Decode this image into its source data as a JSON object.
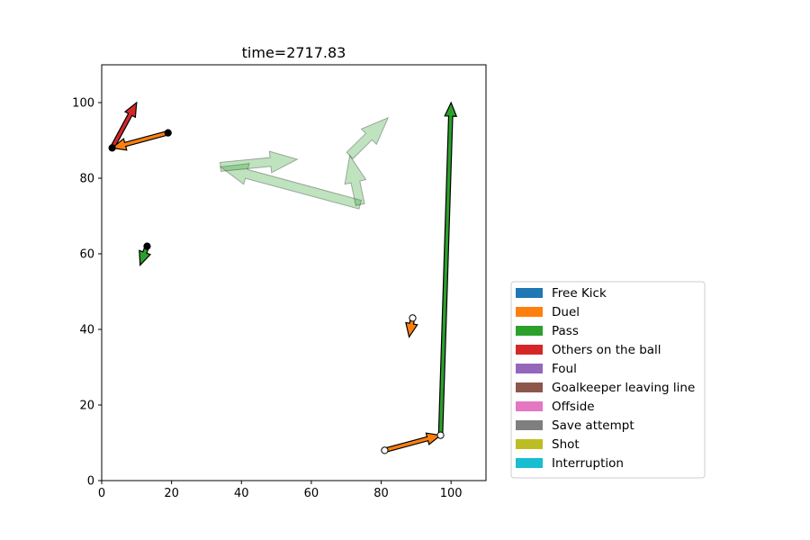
{
  "chart_data": {
    "type": "scatter",
    "title": "time=2717.83",
    "xlabel": "",
    "ylabel": "",
    "xlim": [
      0,
      110
    ],
    "ylim": [
      0,
      110
    ],
    "x_ticks": [
      0,
      20,
      40,
      60,
      80,
      100
    ],
    "y_ticks": [
      0,
      20,
      40,
      60,
      80,
      100
    ],
    "grid": false,
    "legend_position": "lower-right-outside",
    "legend": [
      {
        "label": "Free Kick",
        "color": "#1f77b4"
      },
      {
        "label": "Duel",
        "color": "#ff7f0e"
      },
      {
        "label": "Pass",
        "color": "#2ca02c"
      },
      {
        "label": "Others on the ball",
        "color": "#d62728"
      },
      {
        "label": "Foul",
        "color": "#9467bd"
      },
      {
        "label": "Goalkeeper leaving line",
        "color": "#8c564b"
      },
      {
        "label": "Offside",
        "color": "#e377c2"
      },
      {
        "label": "Save attempt",
        "color": "#7f7f7f"
      },
      {
        "label": "Shot",
        "color": "#bcbd22"
      },
      {
        "label": "Interruption",
        "color": "#17becf"
      }
    ],
    "events": [
      {
        "type": "Others on the ball",
        "start": [
          3,
          88
        ],
        "end": [
          10,
          100
        ],
        "team": "filled"
      },
      {
        "type": "Duel",
        "start": [
          19,
          92
        ],
        "end": [
          3,
          88
        ],
        "team": "filled"
      },
      {
        "type": "Pass",
        "start": [
          13,
          62
        ],
        "end": [
          11,
          57
        ],
        "team": "filled"
      },
      {
        "type": "Duel",
        "start": [
          89,
          43
        ],
        "end": [
          88,
          38
        ],
        "team": "open"
      },
      {
        "type": "Duel",
        "start": [
          81,
          8
        ],
        "end": [
          97,
          12
        ],
        "team": "open"
      },
      {
        "type": "Pass",
        "start": [
          97,
          12
        ],
        "end": [
          100,
          100
        ],
        "team": "open"
      }
    ],
    "faded_arrows": [
      {
        "type": "Pass",
        "start": [
          74,
          73
        ],
        "end": [
          34,
          83
        ]
      },
      {
        "type": "Pass",
        "start": [
          34,
          83
        ],
        "end": [
          56,
          85
        ]
      },
      {
        "type": "Pass",
        "start": [
          74,
          73
        ],
        "end": [
          71,
          86
        ]
      },
      {
        "type": "Pass",
        "start": [
          71,
          86
        ],
        "end": [
          82,
          96
        ]
      }
    ]
  }
}
